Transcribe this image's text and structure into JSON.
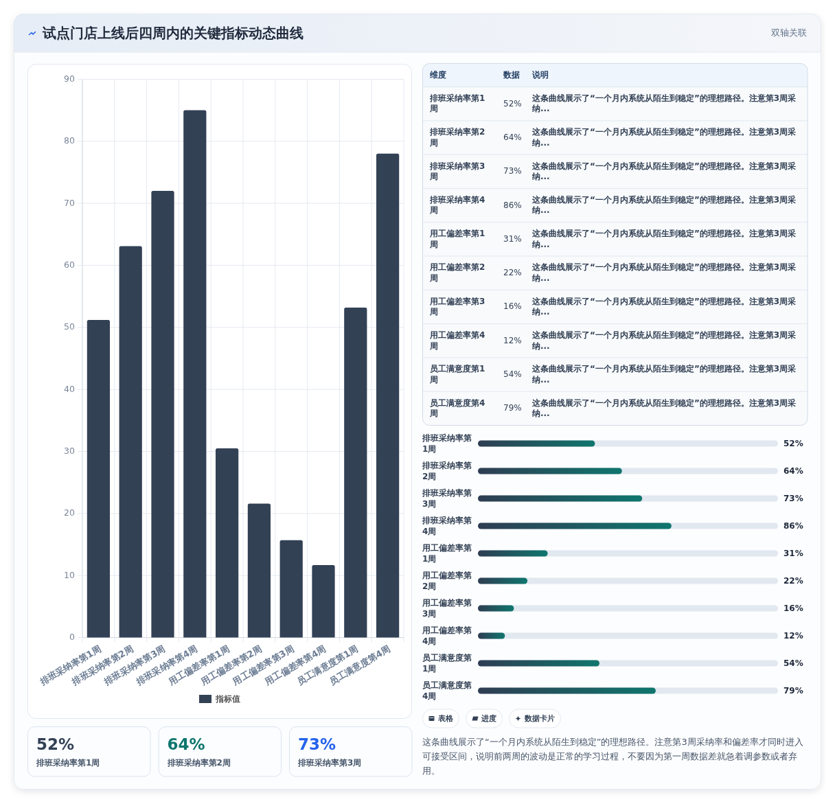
{
  "chart_data": [
    {
      "type": "bar",
      "title": "试点门店上线后四周内的关键指标动态曲线",
      "annotations": [
        "双轴关联"
      ],
      "categories": [
        "排班采纳率第1周",
        "排班采纳率第2周",
        "排班采纳率第3周",
        "排班采纳率第4周",
        "用工偏差率第1周",
        "用工偏差率第2周",
        "用工偏差率第3周",
        "用工偏差率第4周",
        "员工满意度第1周",
        "员工满意度第4周"
      ],
      "series": [
        {
          "name": "指标值",
          "color": "#334155",
          "values": [
            51.2,
            63.1,
            72,
            85,
            30.5,
            21.6,
            15.7,
            11.7,
            53.2,
            78
          ]
        }
      ],
      "ylim": [
        0,
        90
      ],
      "yticks": [
        0,
        10,
        20,
        30,
        40,
        50,
        60,
        70,
        80,
        90
      ],
      "grid": true,
      "legend": "bottom"
    },
    {
      "type": "other",
      "categories": [
        "维度",
        "数据",
        "说明"
      ],
      "annotations": [
        "排班采纳率第1周",
        "52%",
        "这条曲线展示了“一个月内系统从陌生到稳定”的理想路径。注意第3周采纳...",
        "排班采纳率第2周",
        "64%",
        "这条曲线展示了“一个月内系统从陌生到稳定”的理想路径。注意第3周采纳...",
        "排班采纳率第3周",
        "73%",
        "这条曲线展示了“一个月内系统从陌生到稳定”的理想路径。注意第3周采纳...",
        "排班采纳率第4周",
        "86%",
        "这条曲线展示了“一个月内系统从陌生到稳定”的理想路径。注意第3周采纳...",
        "用工偏差率第1周",
        "31%",
        "这条曲线展示了“一个月内系统从陌生到稳定”的理想路径。注意第3周采纳...",
        "用工偏差率第2周",
        "22%",
        "这条曲线展示了“一个月内系统从陌生到稳定”的理想路径。注意第3周采纳...",
        "用工偏差率第3周",
        "16%",
        "这条曲线展示了“一个月内系统从陌生到稳定”的理想路径。注意第3周采纳...",
        "用工偏差率第4周",
        "12%",
        "这条曲线展示了“一个月内系统从陌生到稳定”的理想路径。注意第3周采纳...",
        "员工满意度第1周",
        "54%",
        "这条曲线展示了“一个月内系统从陌生到稳定”的理想路径。注意第3周采纳...",
        "员工满意度第4周",
        "79%",
        "这条曲线展示了“一个月内系统从陌生到稳定”的理想路径。注意第3周采纳..."
      ]
    },
    {
      "type": "bar",
      "orientation": "horizontal",
      "categories": [
        "排班采纳率第1周",
        "排班采纳率第2周",
        "排班采纳率第3周",
        "排班采纳率第4周",
        "用工偏差率第1周",
        "用工偏差率第2周",
        "用工偏差率第3周",
        "用工偏差率第4周",
        "员工满意度第1周",
        "员工满意度第4周"
      ],
      "values": [
        52,
        64,
        73,
        86,
        31,
        22,
        16,
        12,
        54,
        79
      ],
      "value_labels": [
        "52%",
        "64%",
        "73%",
        "86%",
        "31%",
        "22%",
        "16%",
        "12%",
        "54%",
        "79%"
      ],
      "color": "#0f766e",
      "tick_labels": "y"
    },
    {
      "type": "other",
      "categories": [
        "排班采纳率第1周",
        "排班采纳率第2周",
        "排班采纳率第3周"
      ],
      "annotations": [
        "52%",
        "64%",
        "73%"
      ]
    },
    {
      "type": "other",
      "categories": [
        "表格",
        "进度",
        "数据卡片"
      ],
      "annotations": [
        "这条曲线展示了“一个月内系统从陌生到稳定”的理想路径。注意第3周采纳率和偏差率才同时进入可接受区间，说明前两周的波动是正常的学习过程，不要因为第一周数据差就急着调参数或者弃用。"
      ]
    }
  ]
}
